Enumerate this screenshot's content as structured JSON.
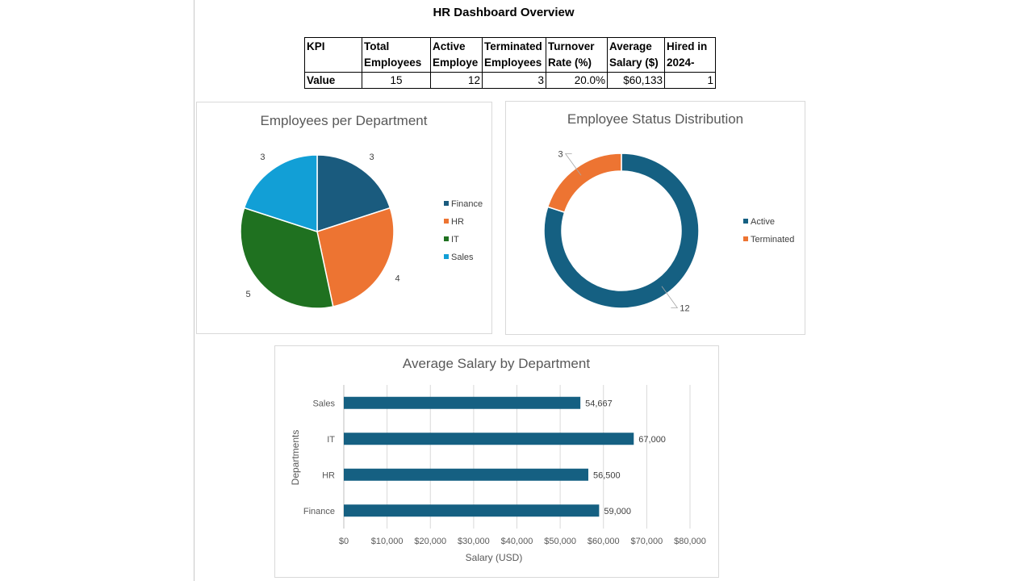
{
  "page_title": "HR Dashboard Overview",
  "kpi_table": {
    "headers": [
      [
        "KPI"
      ],
      [
        "Total",
        "Employees"
      ],
      [
        "Active",
        "Employe"
      ],
      [
        "Terminated",
        "Employees"
      ],
      [
        "Turnover",
        "Rate (%)"
      ],
      [
        "Average",
        "Salary ($)"
      ],
      [
        "Hired in",
        "2024-"
      ]
    ],
    "values": [
      "Value",
      "15",
      "12",
      "3",
      "20.0%",
      "$60,133",
      "1"
    ]
  },
  "colors": {
    "finance": "#1a5b7e",
    "hr": "#ed7432",
    "it": "#1f7120",
    "sales": "#129fd6",
    "active": "#156082",
    "terminated": "#ed7432",
    "bar": "#156082"
  },
  "chart_data": [
    {
      "type": "pie",
      "title": "Employees per Department",
      "labels": [
        "Finance",
        "HR",
        "IT",
        "Sales"
      ],
      "values": [
        3,
        4,
        5,
        3
      ],
      "colors": [
        "#1a5b7e",
        "#ed7432",
        "#1f7120",
        "#129fd6"
      ],
      "legend": "right"
    },
    {
      "type": "pie",
      "subtype": "doughnut",
      "title": "Employee Status Distribution",
      "labels": [
        "Active",
        "Terminated"
      ],
      "values": [
        12,
        3
      ],
      "colors": [
        "#156082",
        "#ed7432"
      ],
      "legend": "right"
    },
    {
      "type": "bar",
      "orientation": "horizontal",
      "title": "Average Salary by Department",
      "categories": [
        "Finance",
        "HR",
        "IT",
        "Sales"
      ],
      "values": [
        59000,
        56500,
        67000,
        54667
      ],
      "value_labels": [
        "59,000",
        "56,500",
        "67,000",
        "54,667"
      ],
      "xlabel": "Salary (USD)",
      "ylabel": "Departments",
      "xlim": [
        0,
        80000
      ],
      "x_ticks": [
        "$0",
        "$10,000",
        "$20,000",
        "$30,000",
        "$40,000",
        "$50,000",
        "$60,000",
        "$70,000",
        "$80,000"
      ],
      "grid": true
    }
  ]
}
